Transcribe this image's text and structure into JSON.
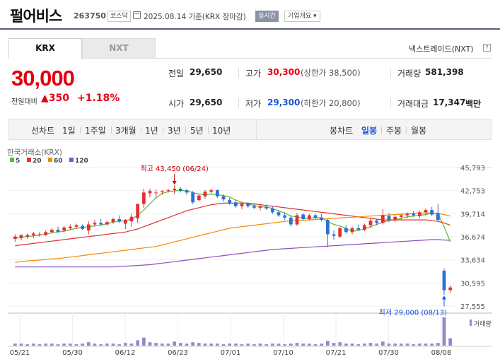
{
  "header": {
    "company": "펄어비스",
    "code": "263750",
    "market": "코스닥",
    "date": "2025.08.14 기준(KRX 장마감)",
    "realtime": "실시간",
    "corp_info": "기업개요 ▾"
  },
  "tabs": {
    "krx": "KRX",
    "nxt": "NXT"
  },
  "nxt_link": "넥스트레이드(NXT)",
  "nxt_icon": "?",
  "quote": {
    "price": "30,000",
    "change_label": "전일대비",
    "change_value": "▲350",
    "change_pct": "+1.18%"
  },
  "stats": {
    "prev_label": "전일",
    "prev": "29,650",
    "open_label": "시가",
    "open": "29,650",
    "high_label": "고가",
    "high": "30,300",
    "upper_limit": "(상한가 38,500)",
    "low_label": "저가",
    "low": "29,300",
    "lower_limit": "(하한가 20,800)",
    "volume_label": "거래량",
    "volume": "581,398",
    "amount_label": "거래대금",
    "amount": "17,347",
    "amount_unit": "백만"
  },
  "period": {
    "line_label": "선차트",
    "line_items": [
      "1일",
      "1주일",
      "3개월",
      "1년",
      "3년",
      "5년",
      "10년"
    ],
    "candle_label": "봉차트",
    "candle_items": [
      "일봉",
      "주봉",
      "월봉"
    ]
  },
  "chart_data": {
    "type": "candlestick",
    "source": "한국거래소(KRX)",
    "legend": [
      "5",
      "20",
      "60",
      "120"
    ],
    "legend_colors": [
      "#5cb82e",
      "#e03030",
      "#f08c00",
      "#8a4fc0"
    ],
    "up_color": "#e03030",
    "down_color": "#2d6fd6",
    "y_ticks": [
      "45,793",
      "42,753",
      "39,714",
      "36,674",
      "33,634",
      "30,595",
      "27,555"
    ],
    "y_range": [
      27555,
      45793
    ],
    "x_labels": [
      "05/21",
      "05/30",
      "06/12",
      "06/23",
      "07/01",
      "07/10",
      "07/21",
      "07/30",
      "08/08"
    ],
    "max_annotation": "최고 43,450 (06/24)",
    "min_annotation": "최저 29,000 (08/13)",
    "volume_label": "거래량",
    "candles": [
      {
        "o": 36400,
        "h": 37000,
        "l": 36000,
        "c": 36700
      },
      {
        "o": 36500,
        "h": 37000,
        "l": 36200,
        "c": 36900
      },
      {
        "o": 36700,
        "h": 37100,
        "l": 36400,
        "c": 36900
      },
      {
        "o": 36900,
        "h": 37300,
        "l": 36500,
        "c": 37100
      },
      {
        "o": 37000,
        "h": 37300,
        "l": 36700,
        "c": 37000
      },
      {
        "o": 36900,
        "h": 37500,
        "l": 36800,
        "c": 37300
      },
      {
        "o": 37300,
        "h": 37800,
        "l": 37100,
        "c": 37600
      },
      {
        "o": 37600,
        "h": 38000,
        "l": 37400,
        "c": 37300
      },
      {
        "o": 37500,
        "h": 38100,
        "l": 37300,
        "c": 37900
      },
      {
        "o": 37800,
        "h": 38300,
        "l": 37600,
        "c": 38000
      },
      {
        "o": 38000,
        "h": 38400,
        "l": 37700,
        "c": 38200
      },
      {
        "o": 38100,
        "h": 38300,
        "l": 37600,
        "c": 37700
      },
      {
        "o": 37500,
        "h": 38700,
        "l": 37000,
        "c": 38300
      },
      {
        "o": 38300,
        "h": 38900,
        "l": 38000,
        "c": 38500
      },
      {
        "o": 38500,
        "h": 39000,
        "l": 38200,
        "c": 38300
      },
      {
        "o": 38300,
        "h": 38800,
        "l": 38100,
        "c": 38600
      },
      {
        "o": 38600,
        "h": 39200,
        "l": 38400,
        "c": 39000
      },
      {
        "o": 39000,
        "h": 39500,
        "l": 38500,
        "c": 38700
      },
      {
        "o": 38400,
        "h": 39000,
        "l": 37700,
        "c": 38900
      },
      {
        "o": 38700,
        "h": 39700,
        "l": 38000,
        "c": 39300
      },
      {
        "o": 39100,
        "h": 41000,
        "l": 38500,
        "c": 41000
      },
      {
        "o": 41000,
        "h": 43000,
        "l": 40500,
        "c": 42500
      },
      {
        "o": 42400,
        "h": 43000,
        "l": 41900,
        "c": 42700
      },
      {
        "o": 42500,
        "h": 42900,
        "l": 41800,
        "c": 42500
      },
      {
        "o": 42600,
        "h": 42800,
        "l": 42200,
        "c": 42700
      },
      {
        "o": 42700,
        "h": 43000,
        "l": 42500,
        "c": 42800
      },
      {
        "o": 42800,
        "h": 43450,
        "l": 42300,
        "c": 43000
      },
      {
        "o": 43000,
        "h": 43200,
        "l": 42500,
        "c": 42700
      },
      {
        "o": 42800,
        "h": 43000,
        "l": 42200,
        "c": 42500
      },
      {
        "o": 42500,
        "h": 42700,
        "l": 41000,
        "c": 41200
      },
      {
        "o": 41500,
        "h": 42300,
        "l": 41300,
        "c": 42100
      },
      {
        "o": 42000,
        "h": 42800,
        "l": 41700,
        "c": 42600
      },
      {
        "o": 42600,
        "h": 43000,
        "l": 42300,
        "c": 42800
      },
      {
        "o": 42800,
        "h": 42900,
        "l": 41800,
        "c": 42000
      },
      {
        "o": 42000,
        "h": 42300,
        "l": 41300,
        "c": 41600
      },
      {
        "o": 41500,
        "h": 41800,
        "l": 40900,
        "c": 41100
      },
      {
        "o": 41200,
        "h": 41500,
        "l": 40500,
        "c": 40700
      },
      {
        "o": 40700,
        "h": 41200,
        "l": 40300,
        "c": 41000
      },
      {
        "o": 41000,
        "h": 41200,
        "l": 40500,
        "c": 40700
      },
      {
        "o": 40700,
        "h": 41100,
        "l": 40300,
        "c": 40500
      },
      {
        "o": 40500,
        "h": 40900,
        "l": 40100,
        "c": 40700
      },
      {
        "o": 40600,
        "h": 40900,
        "l": 40200,
        "c": 40400
      },
      {
        "o": 40400,
        "h": 40700,
        "l": 39700,
        "c": 39900
      },
      {
        "o": 39900,
        "h": 40200,
        "l": 39300,
        "c": 39500
      },
      {
        "o": 39500,
        "h": 39900,
        "l": 38900,
        "c": 39200
      },
      {
        "o": 39200,
        "h": 39500,
        "l": 38000,
        "c": 38300
      },
      {
        "o": 38300,
        "h": 39800,
        "l": 38100,
        "c": 39500
      },
      {
        "o": 39600,
        "h": 39800,
        "l": 38800,
        "c": 39000
      },
      {
        "o": 39000,
        "h": 39700,
        "l": 38800,
        "c": 39500
      },
      {
        "o": 39500,
        "h": 39700,
        "l": 39000,
        "c": 39200
      },
      {
        "o": 39200,
        "h": 39700,
        "l": 38700,
        "c": 38900
      },
      {
        "o": 38900,
        "h": 39000,
        "l": 35300,
        "c": 37000
      },
      {
        "o": 37000,
        "h": 37500,
        "l": 36300,
        "c": 36800
      },
      {
        "o": 36700,
        "h": 38000,
        "l": 36500,
        "c": 37800
      },
      {
        "o": 37800,
        "h": 38200,
        "l": 37100,
        "c": 37300
      },
      {
        "o": 37300,
        "h": 38000,
        "l": 37000,
        "c": 37800
      },
      {
        "o": 37800,
        "h": 38300,
        "l": 37500,
        "c": 37600
      },
      {
        "o": 37600,
        "h": 38400,
        "l": 37400,
        "c": 38200
      },
      {
        "o": 38200,
        "h": 39200,
        "l": 37800,
        "c": 38800
      },
      {
        "o": 38800,
        "h": 39000,
        "l": 38200,
        "c": 38500
      },
      {
        "o": 38500,
        "h": 40300,
        "l": 38300,
        "c": 39500
      },
      {
        "o": 39400,
        "h": 39800,
        "l": 38600,
        "c": 38900
      },
      {
        "o": 38900,
        "h": 39500,
        "l": 38600,
        "c": 39300
      },
      {
        "o": 39300,
        "h": 39700,
        "l": 38900,
        "c": 39500
      },
      {
        "o": 39500,
        "h": 39900,
        "l": 39100,
        "c": 39700
      },
      {
        "o": 39700,
        "h": 40100,
        "l": 39300,
        "c": 39500
      },
      {
        "o": 39400,
        "h": 40100,
        "l": 39100,
        "c": 39900
      },
      {
        "o": 39900,
        "h": 40400,
        "l": 39500,
        "c": 40200
      },
      {
        "o": 40200,
        "h": 40600,
        "l": 39400,
        "c": 39600
      },
      {
        "o": 39800,
        "h": 41000,
        "l": 38700,
        "c": 38900
      },
      {
        "o": 32200,
        "h": 32500,
        "l": 29000,
        "c": 29650
      },
      {
        "o": 29650,
        "h": 30300,
        "l": 29300,
        "c": 30000
      }
    ],
    "volumes": [
      3,
      3,
      2,
      3,
      2,
      3,
      3,
      2,
      3,
      3,
      2,
      3,
      5,
      3,
      2,
      3,
      3,
      2,
      4,
      3,
      8,
      12,
      5,
      4,
      3,
      3,
      6,
      4,
      3,
      5,
      4,
      3,
      3,
      3,
      2,
      3,
      3,
      2,
      3,
      2,
      3,
      2,
      3,
      3,
      2,
      3,
      4,
      3,
      3,
      2,
      3,
      7,
      4,
      5,
      3,
      3,
      2,
      3,
      4,
      3,
      6,
      3,
      3,
      3,
      3,
      2,
      3,
      3,
      3,
      4,
      42,
      11
    ],
    "ma5": [
      36500,
      36600,
      36700,
      36800,
      36900,
      37000,
      37200,
      37300,
      37400,
      37600,
      37800,
      37900,
      38000,
      38100,
      38200,
      38400,
      38600,
      38700,
      38800,
      39000,
      39500,
      40200,
      41000,
      41800,
      42400,
      42600,
      42700,
      42800,
      42700,
      42500,
      42300,
      42200,
      42300,
      42200,
      42100,
      41900,
      41500,
      41200,
      41000,
      40800,
      40600,
      40600,
      40400,
      40100,
      39800,
      39400,
      39300,
      39100,
      39100,
      39200,
      39200,
      38700,
      38300,
      38100,
      37800,
      37400,
      37500,
      37700,
      38000,
      38300,
      38600,
      38800,
      38900,
      39100,
      39300,
      39400,
      39500,
      39600,
      39800,
      39700,
      38000,
      36000
    ],
    "ma20": [
      35500,
      35600,
      35700,
      35800,
      35900,
      36000,
      36100,
      36200,
      36300,
      36400,
      36500,
      36600,
      36700,
      36800,
      36900,
      37000,
      37100,
      37200,
      37300,
      37500,
      37700,
      38000,
      38300,
      38600,
      38900,
      39200,
      39500,
      39800,
      40100,
      40300,
      40500,
      40700,
      40900,
      41000,
      41100,
      41100,
      41100,
      41100,
      41100,
      41000,
      40900,
      40800,
      40700,
      40600,
      40500,
      40400,
      40300,
      40200,
      40100,
      40000,
      39900,
      39800,
      39700,
      39600,
      39500,
      39400,
      39300,
      39200,
      39100,
      39000,
      38900,
      38900,
      38900,
      38900,
      38900,
      38900,
      38900,
      38900,
      38800,
      38700,
      38500,
      38200
    ],
    "ma60": [
      33300,
      33400,
      33500,
      33550,
      33600,
      33700,
      33750,
      33800,
      33900,
      34000,
      34100,
      34200,
      34300,
      34400,
      34500,
      34600,
      34700,
      34800,
      34900,
      35000,
      35100,
      35200,
      35300,
      35400,
      35600,
      35800,
      36000,
      36200,
      36400,
      36600,
      36800,
      37000,
      37200,
      37400,
      37600,
      37800,
      37900,
      38000,
      38100,
      38200,
      38300,
      38400,
      38500,
      38600,
      38700,
      38750,
      38800,
      38850,
      38900,
      38950,
      39000,
      39050,
      39100,
      39150,
      39200,
      39250,
      39300,
      39350,
      39400,
      39450,
      39500,
      39550,
      39600,
      39650,
      39700,
      39750,
      39800,
      39800,
      39800,
      39750,
      39600,
      39400
    ],
    "ma120": [
      32700,
      32700,
      32700,
      32700,
      32700,
      32700,
      32700,
      32700,
      32700,
      32700,
      32700,
      32700,
      32700,
      32700,
      32700,
      32700,
      32700,
      32750,
      32800,
      32850,
      32900,
      32950,
      33000,
      33100,
      33200,
      33300,
      33400,
      33500,
      33600,
      33700,
      33800,
      33900,
      34000,
      34100,
      34200,
      34300,
      34400,
      34500,
      34600,
      34700,
      34800,
      34900,
      35000,
      35050,
      35100,
      35150,
      35200,
      35250,
      35300,
      35350,
      35400,
      35450,
      35500,
      35550,
      35600,
      35650,
      35700,
      35750,
      35800,
      35850,
      35900,
      35950,
      36000,
      36050,
      36100,
      36150,
      36200,
      36250,
      36300,
      36300,
      36250,
      36200
    ]
  }
}
